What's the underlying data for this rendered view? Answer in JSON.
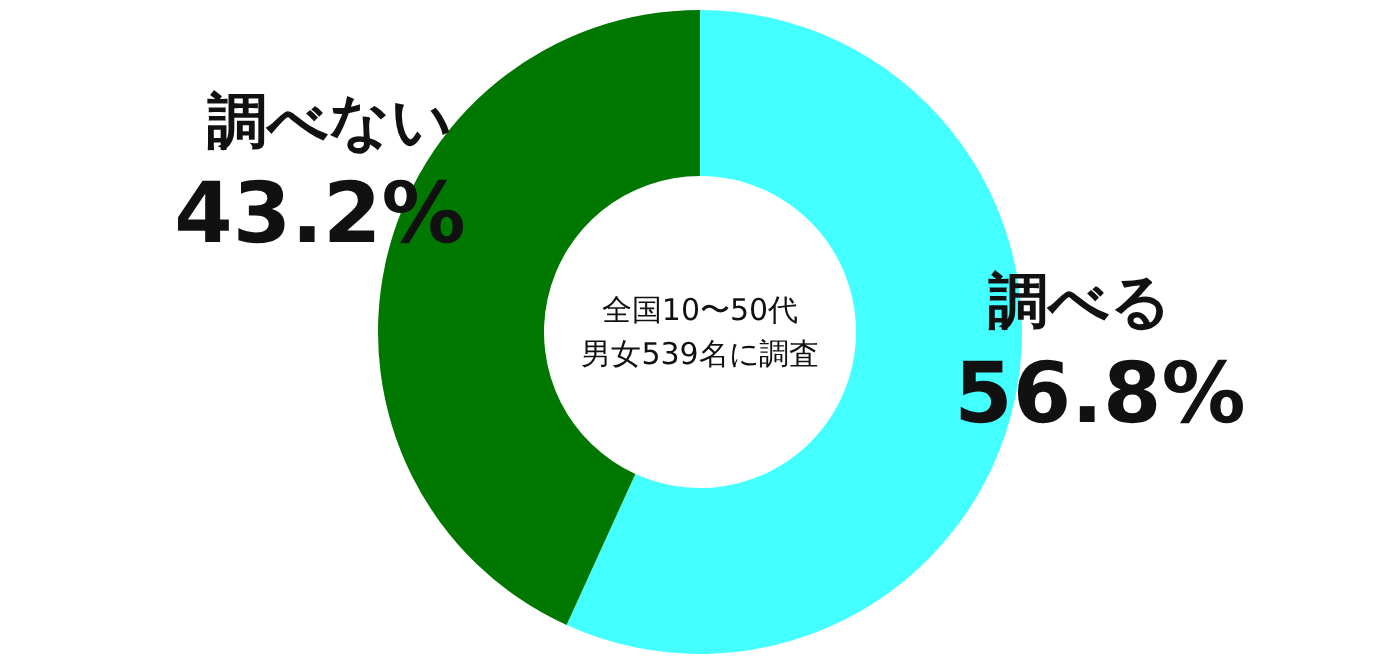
{
  "chart_data": {
    "type": "donut",
    "categories": [
      "調べる",
      "調べない"
    ],
    "values": [
      56.8,
      43.2
    ],
    "colors": [
      "#44ffff",
      "#007800"
    ],
    "value_labels": [
      "56.8%",
      "43.2%"
    ],
    "annotations": [
      "全国10〜50代",
      "男女539名に調査"
    ]
  }
}
